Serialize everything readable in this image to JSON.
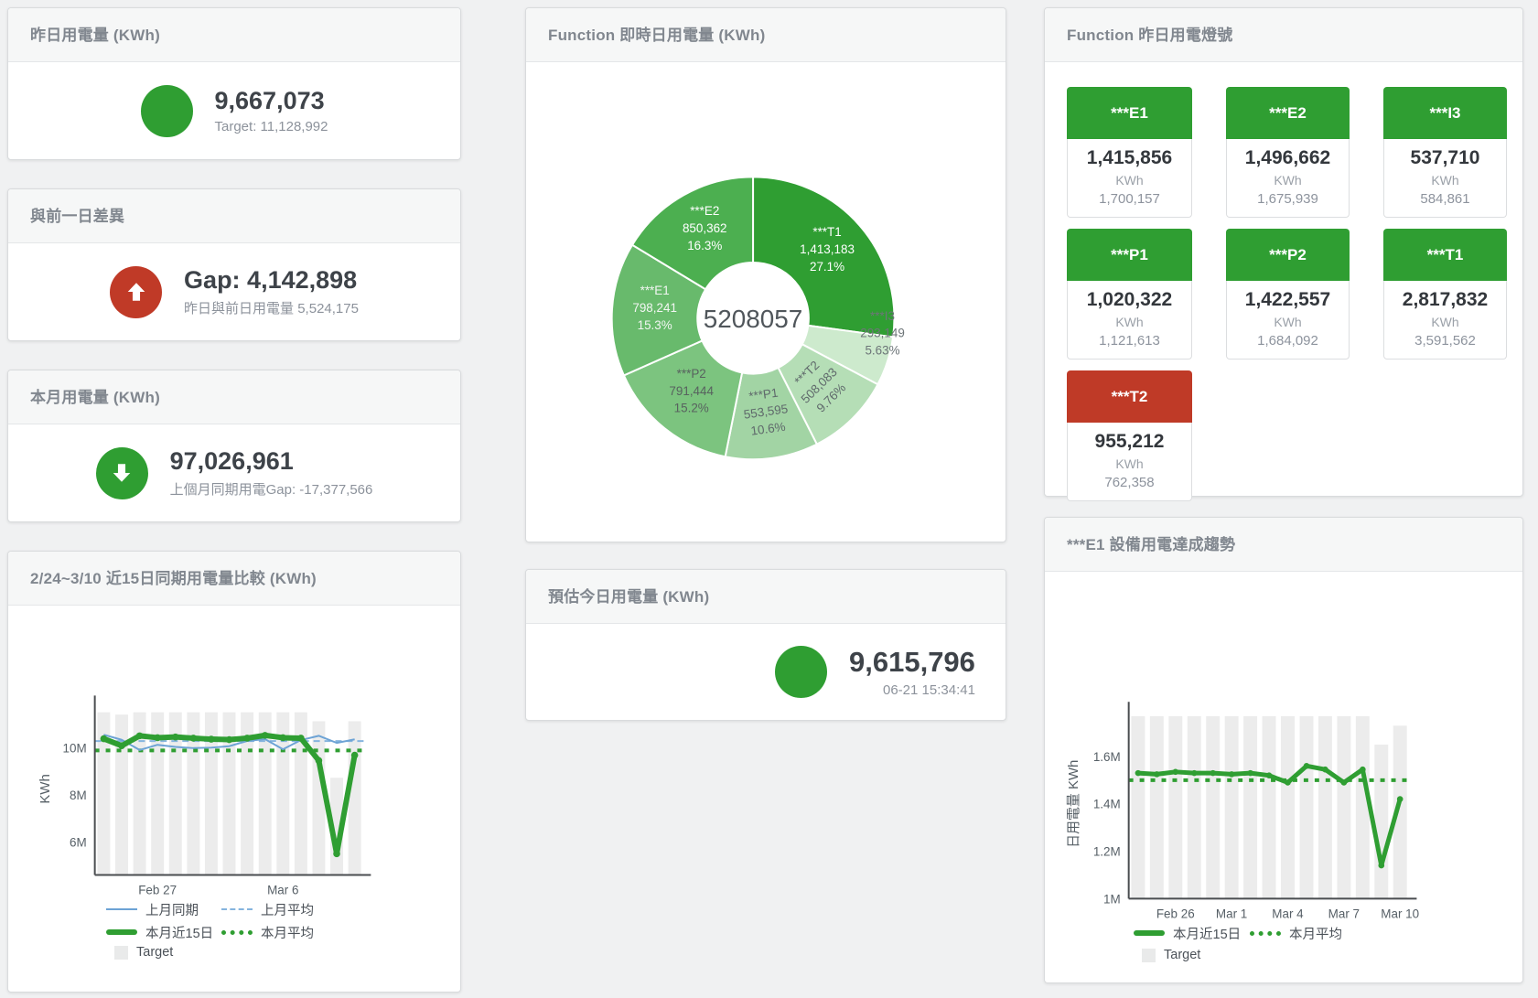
{
  "kpi": {
    "yesterday": {
      "title": "昨日用電量 (KWh)",
      "value": "9,667,073",
      "subtitle": "Target: 11,128,992",
      "indicator": "dot",
      "color": "#2f9e32"
    },
    "day_gap": {
      "title": "與前一日差異",
      "value": "Gap: 4,142,898",
      "subtitle": "昨日與前日用電量 5,524,175",
      "indicator": "arrow-up",
      "color": "#c03a27"
    },
    "month": {
      "title": "本月用電量 (KWh)",
      "value": "97,026,961",
      "subtitle": "上個月同期用電Gap: -17,377,566",
      "indicator": "arrow-down",
      "color": "#2f9e32"
    },
    "today_estimate": {
      "title": "預估今日用電量 (KWh)",
      "value": "9,615,796",
      "subtitle": "06-21 15:34:41",
      "indicator": "dot",
      "color": "#2f9e32"
    }
  },
  "lights": {
    "title": "Function 昨日用電燈號",
    "unit": "KWh",
    "tiles": [
      {
        "name": "***E1",
        "value": "1,415,856",
        "target": "1,700,157",
        "status_color": "#2f9e32"
      },
      {
        "name": "***E2",
        "value": "1,496,662",
        "target": "1,675,939",
        "status_color": "#2f9e32"
      },
      {
        "name": "***I3",
        "value": "537,710",
        "target": "584,861",
        "status_color": "#2f9e32"
      },
      {
        "name": "***P1",
        "value": "1,020,322",
        "target": "1,121,613",
        "status_color": "#2f9e32"
      },
      {
        "name": "***P2",
        "value": "1,422,557",
        "target": "1,684,092",
        "status_color": "#2f9e32"
      },
      {
        "name": "***T1",
        "value": "2,817,832",
        "target": "3,591,562",
        "status_color": "#2f9e32"
      },
      {
        "name": "***T2",
        "value": "955,212",
        "target": "762,358",
        "status_color": "#bf3a27"
      }
    ]
  },
  "chart_data": [
    {
      "id": "realtime_donut",
      "type": "pie",
      "title": "Function 即時日用電量 (KWh)",
      "center_total": "5208057",
      "slices": [
        {
          "name": "***T1",
          "value": 1413183,
          "display": "1,413,183",
          "pct": "27.1%",
          "color": "#2f9e32",
          "label_color": "#ffffff",
          "label_pos": "inside"
        },
        {
          "name": "***I3",
          "value": 293149,
          "display": "293,149",
          "pct": "5.63%",
          "color": "#cdeacd",
          "label_color": "#6d7578",
          "label_pos": "outside"
        },
        {
          "name": "***T2",
          "value": 508083,
          "display": "508,083",
          "pct": "9.76%",
          "color": "#b5deb6",
          "label_color": "#5f696b",
          "label_pos": "inside"
        },
        {
          "name": "***P1",
          "value": 553595,
          "display": "553,595",
          "pct": "10.6%",
          "color": "#a2d4a4",
          "label_color": "#5f696b",
          "label_pos": "inside"
        },
        {
          "name": "***P2",
          "value": 791444,
          "display": "791,444",
          "pct": "15.2%",
          "color": "#7cc47f",
          "label_color": "#58625f",
          "label_pos": "inside"
        },
        {
          "name": "***E1",
          "value": 798241,
          "display": "798,241",
          "pct": "15.3%",
          "color": "#68ba6c",
          "label_color": "#f2f6f2",
          "label_pos": "inside"
        },
        {
          "name": "***E2",
          "value": 850362,
          "display": "850,362",
          "pct": "16.3%",
          "color": "#4caf50",
          "label_color": "#ffffff",
          "label_pos": "inside"
        }
      ]
    },
    {
      "id": "compare_15d",
      "type": "line+bar",
      "title": "2/24~3/10 近15日同期用電量比較 (KWh)",
      "ylabel": "KWh",
      "ylim_m": [
        4.6,
        11.9
      ],
      "yticks": [
        {
          "v": 6,
          "label": "6M"
        },
        {
          "v": 8,
          "label": "8M"
        },
        {
          "v": 10,
          "label": "10M"
        }
      ],
      "xticks": [
        {
          "i": 3,
          "label": "Feb 27"
        },
        {
          "i": 10,
          "label": "Mar 6"
        }
      ],
      "target_m": [
        11.5,
        11.4,
        11.5,
        11.5,
        11.5,
        11.5,
        11.5,
        11.5,
        11.5,
        11.5,
        11.5,
        11.5,
        11.12,
        8.72,
        11.12
      ],
      "last_month_m": [
        10.55,
        10.33,
        9.9,
        10.12,
        10.03,
        9.98,
        10.0,
        10.06,
        10.28,
        10.36,
        9.93,
        10.32,
        10.5,
        10.2,
        10.35
      ],
      "this_month_m": [
        10.38,
        10.08,
        10.5,
        10.42,
        10.45,
        10.4,
        10.36,
        10.34,
        10.4,
        10.52,
        10.42,
        10.4,
        9.45,
        5.5,
        9.68
      ],
      "last_month_avg_m": 10.28,
      "this_month_avg_m": 9.88,
      "colors": {
        "target": "#ececec",
        "last_month": "#6da3d5",
        "this_month": "#2f9e32"
      },
      "legend": {
        "last_month": "上月同期",
        "last_month_avg": "上月平均",
        "this_month": "本月近15日",
        "this_month_avg": "本月平均",
        "target": "Target"
      }
    },
    {
      "id": "e1_trend",
      "type": "line+bar",
      "title": "***E1 設備用電達成趨勢",
      "ylabel": "日用電量 KWh",
      "ylim_m": [
        1.0,
        1.8
      ],
      "yticks": [
        {
          "v": 1.0,
          "label": "1M"
        },
        {
          "v": 1.2,
          "label": "1.2M"
        },
        {
          "v": 1.4,
          "label": "1.4M"
        },
        {
          "v": 1.6,
          "label": "1.6M"
        }
      ],
      "xticks": [
        {
          "i": 2,
          "label": "Feb 26"
        },
        {
          "i": 5,
          "label": "Mar 1"
        },
        {
          "i": 8,
          "label": "Mar 4"
        },
        {
          "i": 11,
          "label": "Mar 7"
        },
        {
          "i": 14,
          "label": "Mar 10"
        }
      ],
      "target_m": [
        1.77,
        1.77,
        1.77,
        1.77,
        1.77,
        1.77,
        1.77,
        1.77,
        1.77,
        1.77,
        1.77,
        1.77,
        1.77,
        1.65,
        1.73
      ],
      "this_month_m": [
        1.53,
        1.525,
        1.535,
        1.53,
        1.53,
        1.525,
        1.53,
        1.52,
        1.49,
        1.56,
        1.545,
        1.49,
        1.545,
        1.14,
        1.42
      ],
      "this_month_avg_m": 1.5,
      "colors": {
        "target": "#ececec",
        "this_month": "#2f9e32"
      },
      "legend": {
        "this_month": "本月近15日",
        "this_month_avg": "本月平均",
        "target": "Target"
      }
    }
  ]
}
